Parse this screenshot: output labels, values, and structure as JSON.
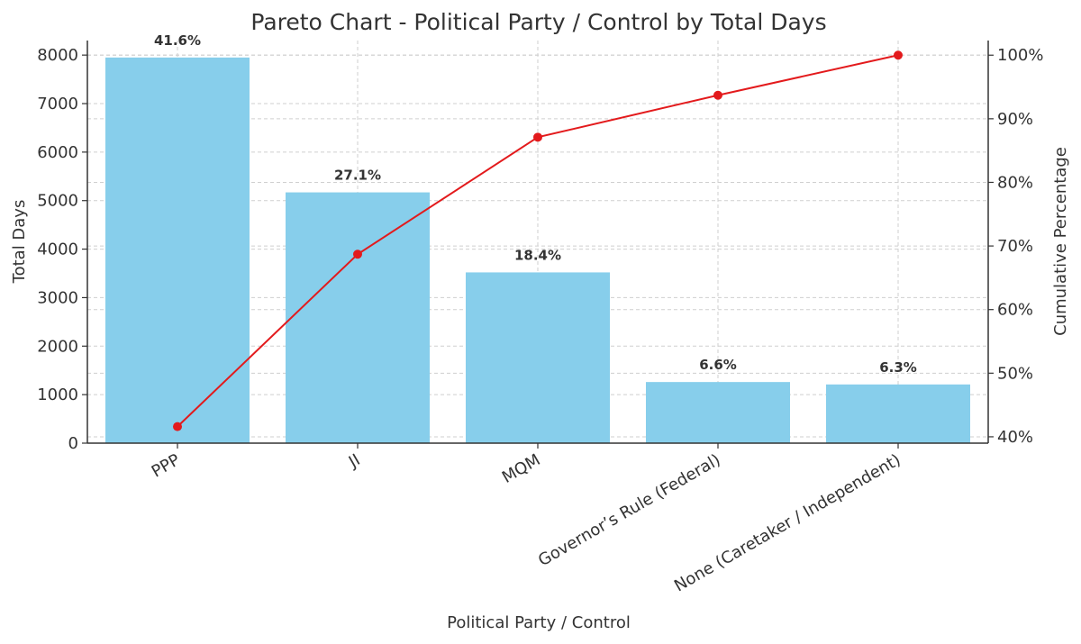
{
  "chart_data": {
    "type": "bar",
    "title": "Pareto Chart - Political Party / Control by Total Days",
    "xlabel": "Political Party / Control",
    "ylabel": "Total Days",
    "y2label": "Cumulative Percentage",
    "categories": [
      "PPP",
      "JI",
      "MQM",
      "Governor’s Rule (Federal)",
      "None (Caretaker / Independent)"
    ],
    "values": [
      7950,
      5170,
      3520,
      1260,
      1210
    ],
    "bar_labels": [
      "41.6%",
      "27.1%",
      "18.4%",
      "6.6%",
      "6.3%"
    ],
    "cumulative": [
      41.6,
      68.7,
      87.1,
      93.7,
      100.0
    ],
    "ylim": [
      0,
      8300
    ],
    "y_ticks": [
      0,
      1000,
      2000,
      3000,
      4000,
      5000,
      6000,
      7000,
      8000
    ],
    "y2lim": [
      39,
      102.3
    ],
    "y2_ticks": [
      40,
      50,
      60,
      70,
      80,
      90,
      100
    ],
    "y2_tick_labels": [
      "40%",
      "50%",
      "60%",
      "70%",
      "80%",
      "90%",
      "100%"
    ],
    "grid": true,
    "colors": {
      "bar": "#87ceeb",
      "line": "#e31a1c"
    }
  }
}
